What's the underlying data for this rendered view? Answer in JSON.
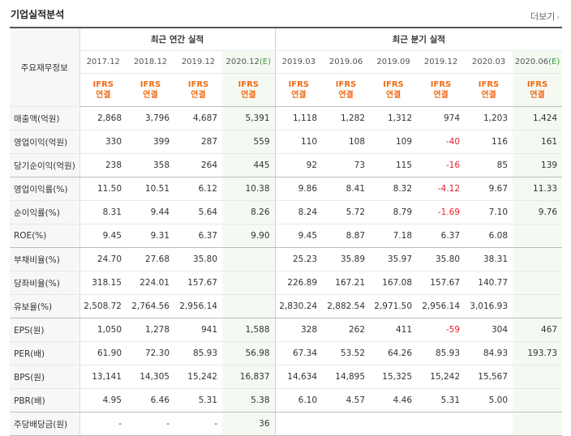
{
  "title": "기업실적분석",
  "more_label": "더보기",
  "headers": {
    "label_col": "주요재무정보",
    "annual_group": "최근 연간 실적",
    "quarter_group": "최근 분기 실적",
    "periods": [
      "2017.12",
      "2018.12",
      "2019.12",
      "2020.12",
      "2019.03",
      "2019.06",
      "2019.09",
      "2019.12",
      "2020.03",
      "2020.06"
    ],
    "estimate_mark": "(E)",
    "ifrs_line1": "IFRS",
    "ifrs_line2": "연결"
  },
  "rows": [
    {
      "label": "매출액(억원)",
      "values": [
        "2,868",
        "3,796",
        "4,687",
        "5,391",
        "1,118",
        "1,282",
        "1,312",
        "974",
        "1,203",
        "1,424"
      ]
    },
    {
      "label": "영업이익(억원)",
      "values": [
        "330",
        "399",
        "287",
        "559",
        "110",
        "108",
        "109",
        "-40",
        "116",
        "161"
      ]
    },
    {
      "label": "당기순이익(억원)",
      "values": [
        "238",
        "358",
        "264",
        "445",
        "92",
        "73",
        "115",
        "-16",
        "85",
        "139"
      ]
    },
    {
      "label": "영업이익률(%)",
      "values": [
        "11.50",
        "10.51",
        "6.12",
        "10.38",
        "9.86",
        "8.41",
        "8.32",
        "-4.12",
        "9.67",
        "11.33"
      ]
    },
    {
      "label": "순이익률(%)",
      "values": [
        "8.31",
        "9.44",
        "5.64",
        "8.26",
        "8.24",
        "5.72",
        "8.79",
        "-1.69",
        "7.10",
        "9.76"
      ]
    },
    {
      "label": "ROE(%)",
      "values": [
        "9.45",
        "9.31",
        "6.37",
        "9.90",
        "9.45",
        "8.87",
        "7.18",
        "6.37",
        "6.08",
        ""
      ]
    },
    {
      "label": "부채비율(%)",
      "values": [
        "24.70",
        "27.68",
        "35.80",
        "",
        "25.23",
        "35.89",
        "35.97",
        "35.80",
        "38.31",
        ""
      ]
    },
    {
      "label": "당좌비율(%)",
      "values": [
        "318.15",
        "224.01",
        "157.67",
        "",
        "226.89",
        "167.21",
        "167.08",
        "157.67",
        "140.77",
        ""
      ]
    },
    {
      "label": "유보율(%)",
      "values": [
        "2,508.72",
        "2,764.56",
        "2,956.14",
        "",
        "2,830.24",
        "2,882.54",
        "2,971.50",
        "2,956.14",
        "3,016.93",
        ""
      ]
    },
    {
      "label": "EPS(원)",
      "values": [
        "1,050",
        "1,278",
        "941",
        "1,588",
        "328",
        "262",
        "411",
        "-59",
        "304",
        "467"
      ]
    },
    {
      "label": "PER(배)",
      "values": [
        "61.90",
        "72.30",
        "85.93",
        "56.98",
        "67.34",
        "53.52",
        "64.26",
        "85.93",
        "84.93",
        "193.73"
      ]
    },
    {
      "label": "BPS(원)",
      "values": [
        "13,141",
        "14,305",
        "15,242",
        "16,837",
        "14,634",
        "14,895",
        "15,325",
        "15,242",
        "15,567",
        ""
      ]
    },
    {
      "label": "PBR(배)",
      "values": [
        "4.95",
        "6.46",
        "5.31",
        "5.38",
        "6.10",
        "4.57",
        "4.46",
        "5.31",
        "5.00",
        ""
      ]
    },
    {
      "label": "주당배당금(원)",
      "values": [
        "-",
        "-",
        "-",
        "36",
        "",
        "",
        "",
        "",
        "",
        ""
      ]
    }
  ]
}
